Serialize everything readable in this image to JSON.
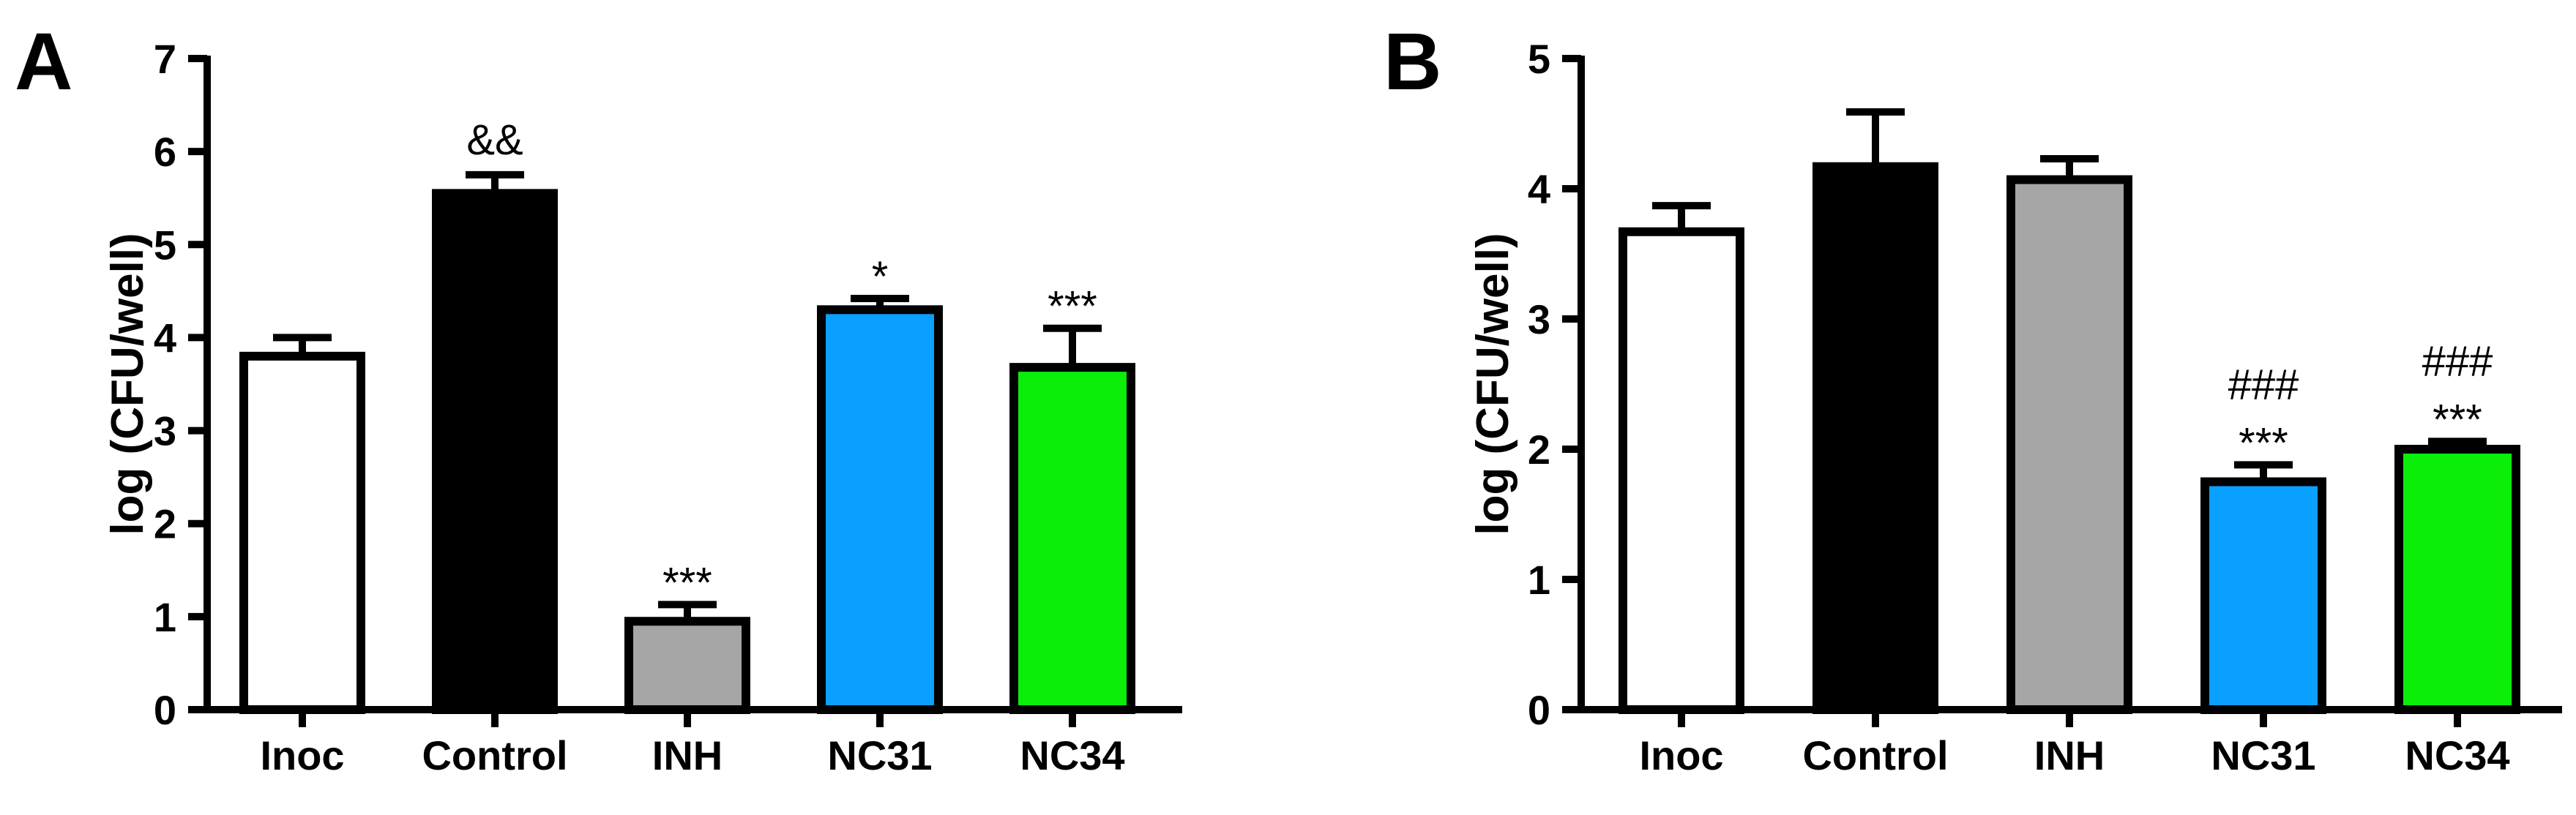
{
  "chart_data": [
    {
      "type": "bar",
      "panel_label": "A",
      "ylabel": "log (CFU/well)",
      "ylim": [
        0,
        7
      ],
      "yticks": [
        "0",
        "1",
        "2",
        "3",
        "4",
        "5",
        "6",
        "7"
      ],
      "categories": [
        "Inoc",
        "Control",
        "INH",
        "NC31",
        "NC34"
      ],
      "values": [
        3.8,
        5.55,
        0.95,
        4.3,
        3.68
      ],
      "errors": [
        0.2,
        0.2,
        0.18,
        0.12,
        0.42
      ],
      "colors": [
        "#ffffff",
        "#000000",
        "#a6a6a6",
        "#0aa0ff",
        "#0aee0a"
      ],
      "annotations": [
        "",
        "&&",
        "***",
        "*",
        "***"
      ]
    },
    {
      "type": "bar",
      "panel_label": "B",
      "ylabel": "log (CFU/well)",
      "ylim": [
        0,
        5
      ],
      "yticks": [
        "0",
        "1",
        "2",
        "3",
        "4",
        "5"
      ],
      "categories": [
        "Inoc",
        "Control",
        "INH",
        "NC31",
        "NC34"
      ],
      "values": [
        3.67,
        4.17,
        4.07,
        1.75,
        2.0
      ],
      "errors": [
        0.2,
        0.42,
        0.16,
        0.13,
        0.06
      ],
      "colors": [
        "#ffffff",
        "#000000",
        "#a6a6a6",
        "#0aa0ff",
        "#0aee0a"
      ],
      "annotations": [
        "",
        "",
        "",
        "###\n***",
        "###\n***"
      ]
    }
  ]
}
